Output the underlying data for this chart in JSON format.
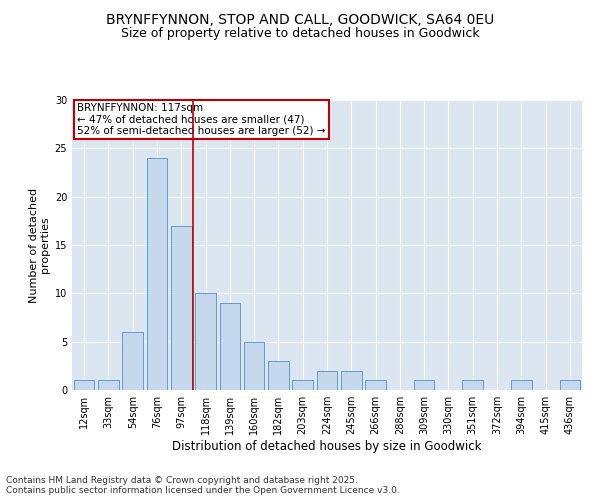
{
  "title": "BRYNFFYNNON, STOP AND CALL, GOODWICK, SA64 0EU",
  "subtitle": "Size of property relative to detached houses in Goodwick",
  "xlabel": "Distribution of detached houses by size in Goodwick",
  "ylabel": "Number of detached\nproperties",
  "categories": [
    "12sqm",
    "33sqm",
    "54sqm",
    "76sqm",
    "97sqm",
    "118sqm",
    "139sqm",
    "160sqm",
    "182sqm",
    "203sqm",
    "224sqm",
    "245sqm",
    "266sqm",
    "288sqm",
    "309sqm",
    "330sqm",
    "351sqm",
    "372sqm",
    "394sqm",
    "415sqm",
    "436sqm"
  ],
  "values": [
    1,
    1,
    6,
    24,
    17,
    10,
    9,
    5,
    3,
    1,
    2,
    2,
    1,
    0,
    1,
    0,
    1,
    0,
    1,
    0,
    1
  ],
  "bar_color": "#c5d8ec",
  "bar_edge_color": "#5b9bd5",
  "vline_x_index": 5,
  "vline_color": "#c00000",
  "annotation_title": "BRYNFFYNNON: 117sqm",
  "annotation_line1": "← 47% of detached houses are smaller (47)",
  "annotation_line2": "52% of semi-detached houses are larger (52) →",
  "annotation_box_color": "#ffffff",
  "annotation_box_edge_color": "#c00000",
  "ylim": [
    0,
    30
  ],
  "yticks": [
    0,
    5,
    10,
    15,
    20,
    25,
    30
  ],
  "background_color": "#dce6f1",
  "footer": "Contains HM Land Registry data © Crown copyright and database right 2025.\nContains public sector information licensed under the Open Government Licence v3.0.",
  "title_fontsize": 10,
  "subtitle_fontsize": 9,
  "xlabel_fontsize": 8.5,
  "ylabel_fontsize": 8,
  "tick_fontsize": 7,
  "annotation_fontsize": 7.5,
  "footer_fontsize": 6.5
}
